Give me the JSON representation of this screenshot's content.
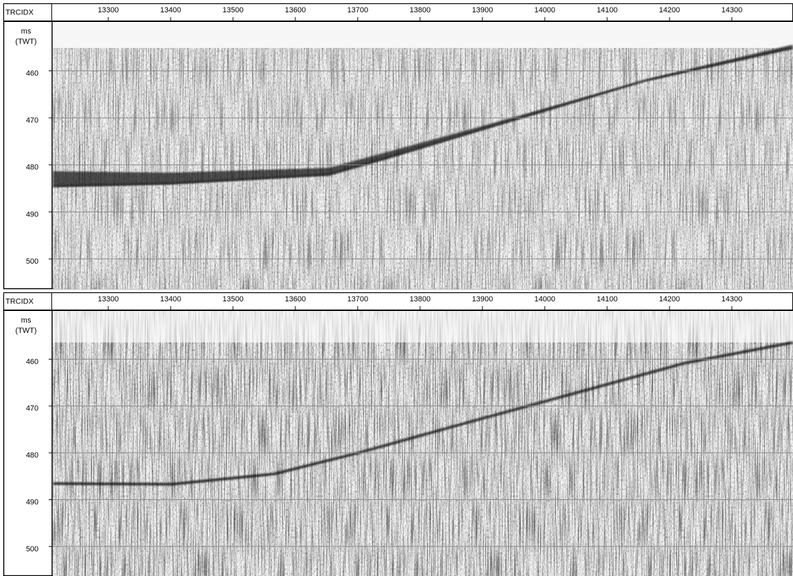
{
  "chart_data": [
    {
      "type": "seismic",
      "xlabel": "TRCIDX",
      "ylabel": [
        "ms",
        "(TWT)"
      ],
      "xlim": [
        13211,
        14398
      ],
      "xticks": [
        13300,
        13400,
        13500,
        13600,
        13700,
        13800,
        13900,
        14000,
        14100,
        14200,
        14300
      ],
      "ylim": [
        449.6,
        506.4
      ],
      "yticks": [
        460,
        470,
        480,
        490,
        500
      ],
      "y_inverted": true,
      "grid": true,
      "grid_color": "#888888"
    },
    {
      "type": "seismic",
      "xlabel": "TRCIDX",
      "ylabel": [
        "ms",
        "(TWT)"
      ],
      "xlim": [
        13211,
        14398
      ],
      "xticks": [
        13300,
        13400,
        13500,
        13600,
        13700,
        13800,
        13900,
        14000,
        14100,
        14200,
        14300
      ],
      "ylim": [
        449.7,
        506.3
      ],
      "yticks": [
        460,
        470,
        480,
        490,
        500
      ],
      "y_inverted": true,
      "grid": true,
      "grid_color": "#888888"
    }
  ]
}
